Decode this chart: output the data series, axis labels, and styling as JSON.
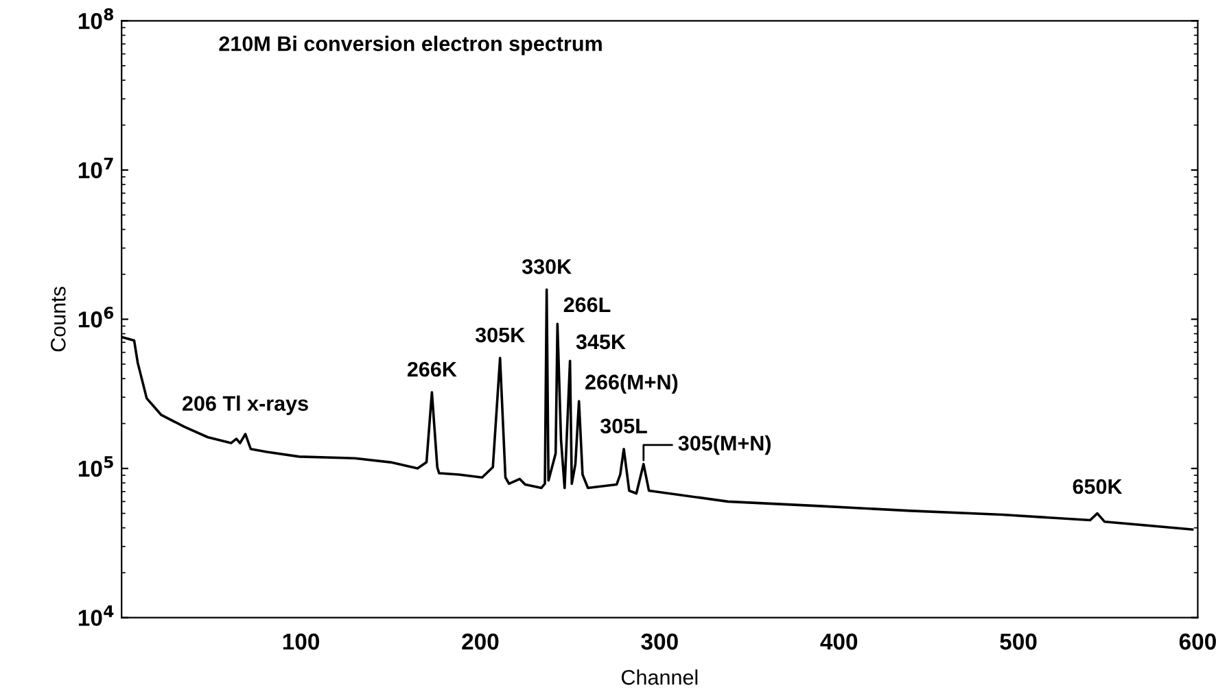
{
  "chart_data": {
    "type": "line",
    "title": "210M Bi conversion electron spectrum",
    "xlabel": "Channel",
    "ylabel": "Counts",
    "x": [
      0,
      7,
      9,
      14,
      22,
      35,
      48,
      61,
      64,
      66,
      69,
      72,
      81,
      99,
      130,
      150,
      165,
      170,
      173,
      176,
      177,
      188,
      201,
      207,
      211,
      214,
      216,
      222,
      225,
      234,
      236,
      237,
      238,
      242,
      243,
      245,
      247,
      250,
      251,
      253,
      255,
      257,
      260,
      276,
      278,
      280,
      283,
      287,
      291,
      294,
      338,
      389,
      440,
      491,
      540,
      544,
      548,
      597
    ],
    "series": [
      {
        "color": "#000000",
        "values": [
          760000,
          720000,
          510000,
          295000,
          229000,
          190000,
          162000,
          148000,
          158000,
          148000,
          170000,
          135000,
          129000,
          120000,
          117000,
          110000,
          100000,
          110000,
          324000,
          102000,
          93000,
          91000,
          87000,
          102000,
          550000,
          87000,
          79000,
          85000,
          78000,
          74000,
          79000,
          1580000,
          83000,
          126000,
          930000,
          155000,
          74000,
          525000,
          79000,
          107000,
          282000,
          91000,
          74000,
          78000,
          91000,
          135000,
          71000,
          68000,
          107000,
          71000,
          60000,
          56000,
          52000,
          49000,
          45000,
          50000,
          44000,
          39000
        ]
      }
    ],
    "annotations": [
      {
        "text": "206 Tl x-rays",
        "x": 69,
        "y": 170000
      },
      {
        "text": "266K",
        "x": 173,
        "y": 324000
      },
      {
        "text": "305K",
        "x": 211,
        "y": 550000
      },
      {
        "text": "330K",
        "x": 237,
        "y": 1580000
      },
      {
        "text": "266L",
        "x": 243,
        "y": 930000
      },
      {
        "text": "345K",
        "x": 250,
        "y": 525000
      },
      {
        "text": "266(M+N)",
        "x": 255,
        "y": 282000
      },
      {
        "text": "305L",
        "x": 280,
        "y": 135000
      },
      {
        "text": "305(M+N)",
        "x": 291,
        "y": 107000
      },
      {
        "text": "650K",
        "x": 544,
        "y": 50000
      }
    ],
    "log": true,
    "xlim": [
      0,
      600
    ],
    "xticks": [
      100,
      200,
      300,
      400,
      500,
      600
    ],
    "ylim": [
      10000,
      100000000
    ],
    "yticks": [
      {
        "value": 10000,
        "label": "10$^{4}$"
      },
      {
        "value": 100000,
        "label": "10$^{5}$"
      },
      {
        "value": 1000000,
        "label": "10$^{6}$"
      },
      {
        "value": 10000000,
        "label": "10$^{7}$"
      },
      {
        "value": 100000000,
        "label": "10$^{8}$"
      }
    ],
    "grid": false,
    "legend": false,
    "marker": "none",
    "line_style": "solid"
  }
}
